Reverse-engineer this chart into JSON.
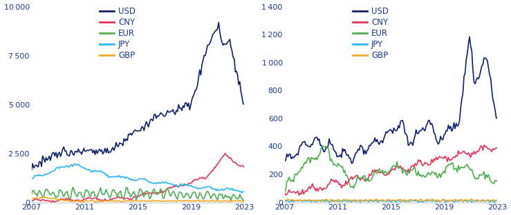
{
  "colors": {
    "USD": "#0d1f6e",
    "CNY": "#e8305a",
    "EUR": "#4caf50",
    "JPY": "#29b6f6",
    "GBP": "#f5a623"
  },
  "currencies": [
    "USD",
    "CNY",
    "EUR",
    "JPY",
    "GBP"
  ],
  "left_ylim": [
    0,
    10000
  ],
  "right_ylim": [
    0,
    1400
  ],
  "left_yticks": [
    0,
    2500,
    5000,
    7500,
    10000
  ],
  "right_yticks": [
    0,
    200,
    400,
    600,
    800,
    1000,
    1200,
    1400
  ],
  "xticks": [
    2007,
    2011,
    2015,
    2019,
    2023
  ],
  "line_width": 1.2,
  "text_color": "#1a3a8a"
}
